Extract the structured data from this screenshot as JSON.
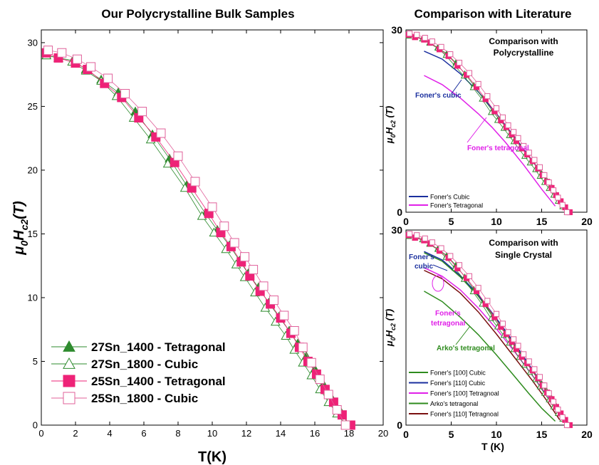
{
  "colors": {
    "green": "#2e8b2e",
    "magenta": "#ee2277",
    "pink": "#e0609a",
    "foner_cubic": "#1a2f9e",
    "foner_tetragonal": "#e020e8",
    "arko": "#2e8b1e",
    "foner_110_tetra": "#7a1010"
  },
  "chart_data": [
    {
      "type": "scatter",
      "title": "Our Polycrystalline Bulk Samples",
      "xlabel": "T(K)",
      "ylabel": "μ0Hc2(T)",
      "xlim": [
        0,
        20
      ],
      "ylim": [
        0,
        31
      ],
      "xticks": [
        "0",
        "2",
        "4",
        "6",
        "8",
        "10",
        "12",
        "14",
        "16",
        "18",
        "20"
      ],
      "yticks": [
        "0",
        "5",
        "10",
        "15",
        "20",
        "25",
        "30"
      ],
      "legend_position": "bottom-left",
      "series": [
        {
          "name": "27Sn_1400 - Tetragonal",
          "marker": "triangle",
          "fill": true,
          "color": "#2e8b2e",
          "x": [
            0.3,
            1.0,
            1.9,
            2.6,
            3.5,
            4.5,
            5.5,
            6.5,
            7.5,
            8.5,
            9.6,
            10.3,
            11.0,
            11.6,
            12.1,
            12.7,
            13.3,
            13.9,
            14.5,
            15.0,
            15.5,
            16.0,
            16.5,
            17.0,
            17.5,
            18.0
          ],
          "y": [
            29.0,
            28.8,
            28.6,
            27.9,
            27.1,
            26.1,
            24.6,
            22.8,
            20.9,
            18.8,
            16.6,
            15.3,
            14.1,
            12.9,
            11.9,
            10.8,
            9.6,
            8.5,
            7.4,
            6.4,
            5.4,
            4.4,
            3.2,
            2.1,
            1.1,
            0.0
          ]
        },
        {
          "name": "27Sn_1800 - Cubic",
          "marker": "triangle",
          "fill": false,
          "color": "#2e8b2e",
          "x": [
            0.3,
            1.0,
            1.8,
            2.6,
            3.5,
            4.4,
            5.4,
            6.4,
            7.4,
            8.4,
            9.4,
            10.1,
            10.8,
            11.4,
            11.9,
            12.5,
            13.1,
            13.7,
            14.3,
            14.8,
            15.3,
            15.8,
            16.3,
            16.8,
            17.3,
            17.8
          ],
          "y": [
            29.0,
            28.8,
            28.5,
            27.8,
            27.0,
            25.8,
            24.1,
            22.4,
            20.5,
            18.6,
            16.4,
            15.1,
            13.8,
            12.6,
            11.6,
            10.4,
            9.2,
            8.1,
            7.0,
            5.9,
            4.9,
            3.9,
            2.8,
            1.8,
            0.9,
            0.0
          ]
        },
        {
          "name": "25Sn_1400 - Tetragonal",
          "marker": "square",
          "fill": true,
          "color": "#ee2277",
          "x": [
            0.3,
            1.0,
            2.0,
            2.7,
            3.7,
            4.7,
            5.7,
            6.7,
            7.8,
            8.8,
            9.8,
            10.5,
            11.1,
            11.7,
            12.2,
            12.8,
            13.4,
            14.0,
            14.6,
            15.1,
            15.6,
            16.1,
            16.6,
            17.1,
            17.6,
            18.1
          ],
          "y": [
            29.2,
            28.8,
            28.4,
            27.9,
            26.8,
            25.7,
            24.1,
            22.6,
            20.6,
            18.6,
            16.6,
            15.1,
            14.0,
            12.8,
            11.7,
            10.5,
            9.5,
            8.4,
            7.2,
            6.1,
            5.0,
            4.0,
            2.8,
            1.8,
            0.8,
            0.0
          ]
        },
        {
          "name": "25Sn_1800 - Cubic",
          "marker": "square",
          "fill": false,
          "color": "#e0609a",
          "x": [
            0.4,
            1.2,
            2.1,
            2.9,
            3.9,
            4.9,
            5.9,
            7.0,
            8.0,
            9.0,
            10.0,
            10.7,
            11.3,
            11.9,
            12.4,
            13.0,
            13.6,
            14.2,
            14.8,
            15.3,
            15.8,
            16.3,
            16.8,
            17.3,
            17.8
          ],
          "y": [
            29.4,
            29.2,
            28.7,
            28.1,
            27.2,
            26.0,
            24.6,
            22.9,
            21.1,
            19.1,
            17.1,
            15.6,
            14.3,
            13.2,
            12.2,
            10.9,
            9.8,
            8.6,
            7.4,
            6.1,
            4.9,
            3.6,
            2.4,
            1.2,
            0.0
          ]
        }
      ]
    },
    {
      "type": "line",
      "title": "Comparison with Literature",
      "panel_title": "Comparison with Polycrystalline",
      "ylabel": "μ0Hc2 (T)",
      "xlim": [
        0,
        20
      ],
      "ylim": [
        0,
        30
      ],
      "xticks": [
        "0",
        "5",
        "10",
        "15",
        "20"
      ],
      "yticks": [
        "0",
        "30"
      ],
      "legend_position": "bottom-left",
      "annotations": [
        "Foner's cubic",
        "Foner's tetragonal"
      ],
      "series": [
        {
          "name": "Foner's  Cubic",
          "color": "#1a2f9e",
          "x": [
            2,
            4,
            6,
            8,
            10,
            12,
            14,
            16,
            17.5
          ],
          "y": [
            26.5,
            25.2,
            22.8,
            19.8,
            16.2,
            12.4,
            8.4,
            4.3,
            0.8
          ]
        },
        {
          "name": "Foner's Tetragonal",
          "color": "#e020e8",
          "x": [
            2,
            4,
            6,
            8,
            9.5,
            11,
            13,
            15,
            16.5
          ],
          "y": [
            22.5,
            21.0,
            18.8,
            16.2,
            14.0,
            11.5,
            7.8,
            3.8,
            1.0
          ]
        }
      ]
    },
    {
      "type": "line",
      "panel_title": "Comparison with Single Crystal",
      "xlabel": "T (K)",
      "ylabel": "μ0Hc2 (T)",
      "xlim": [
        0,
        20
      ],
      "ylim": [
        0,
        30
      ],
      "xticks": [
        "0",
        "5",
        "10",
        "15",
        "20"
      ],
      "yticks": [
        "0",
        "30"
      ],
      "legend_position": "bottom-left",
      "annotations": [
        "Foner's cubic",
        "Foner's tetragonal",
        "Arko's tetragonal"
      ],
      "series": [
        {
          "name": "Foner's [100] Cubic",
          "color": "#2e8b1e",
          "x": [
            2,
            4,
            6,
            8,
            10,
            12,
            14,
            16,
            17.5
          ],
          "y": [
            26.5,
            25.2,
            22.8,
            19.8,
            16.2,
            12.3,
            8.3,
            4.2,
            0.8
          ]
        },
        {
          "name": "Foner's [110] Cubic",
          "color": "#1a2f9e",
          "x": [
            2,
            4,
            6,
            8,
            10,
            12,
            14,
            16,
            17.6
          ],
          "y": [
            26.7,
            25.4,
            23.0,
            20.0,
            16.4,
            12.6,
            8.5,
            4.4,
            0.8
          ]
        },
        {
          "name": "Foner's [100] Tetragnoal",
          "color": "#e020e8",
          "x": [
            2,
            4,
            6,
            8,
            10,
            12,
            14,
            16,
            17.5
          ],
          "y": [
            24.2,
            22.9,
            20.8,
            18.0,
            14.8,
            11.3,
            7.6,
            3.8,
            0.6
          ]
        },
        {
          "name": "Arko's tetragonal",
          "color": "#2e8b1e",
          "x": [
            2,
            4,
            6,
            8,
            10,
            12,
            13.5,
            15,
            16.5
          ],
          "y": [
            20.6,
            19.0,
            16.6,
            13.9,
            10.8,
            7.5,
            5.0,
            2.6,
            0.6
          ]
        },
        {
          "name": "Foner's [110] Tetragnoal",
          "color": "#7a1010",
          "x": [
            2,
            4,
            6,
            8,
            10,
            12,
            14,
            15.5,
            17
          ],
          "y": [
            23.8,
            22.5,
            20.3,
            17.4,
            14.0,
            10.4,
            6.8,
            3.9,
            0.8
          ]
        }
      ],
      "markers_from_panel_a": true
    }
  ]
}
